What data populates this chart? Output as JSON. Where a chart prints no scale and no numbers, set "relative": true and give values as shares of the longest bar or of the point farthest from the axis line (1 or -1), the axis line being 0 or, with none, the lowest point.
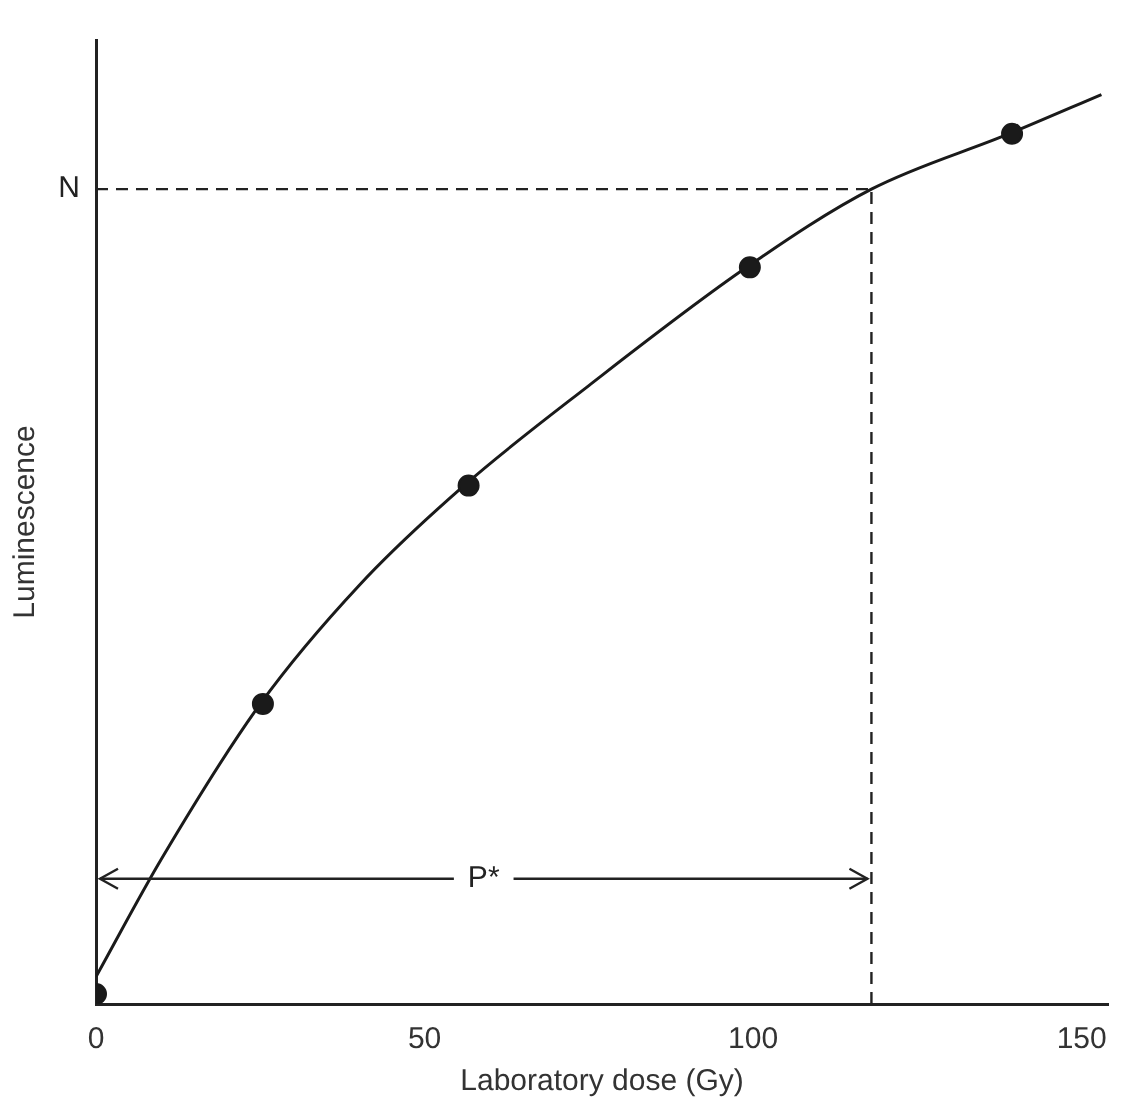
{
  "chart_data": {
    "type": "scatter",
    "xlabel": "Laboratory dose (Gy)",
    "ylabel": "Luminescence",
    "relative": true,
    "xlim": [
      0,
      154
    ],
    "xticks": [
      0,
      50,
      100,
      150
    ],
    "grid": false,
    "legend": false,
    "marker": "circle",
    "series": [
      {
        "color": "#1a1a1a",
        "x": [
          0,
          25.4,
          56.7,
          99.5,
          139.4
        ],
        "values": [
          0.011,
          0.33,
          0.57,
          0.81,
          0.957
        ]
      },
      {
        "type": "line",
        "color": "#1a1a1a",
        "marker": "none",
        "line_style": "solid",
        "x": [
          0,
          10,
          25,
          40,
          56,
          75,
          99,
          118,
          139,
          153
        ],
        "values": [
          0.03,
          0.16,
          0.33,
          0.46,
          0.57,
          0.68,
          0.81,
          0.896,
          0.957,
          1.0
        ]
      }
    ],
    "ref_lines": [
      {
        "axis": "y",
        "value": 0.896,
        "label": "N",
        "line_style": "dashed"
      },
      {
        "axis": "x",
        "value": 118,
        "label": null,
        "line_style": "dashed"
      }
    ],
    "annotations": [
      "P*"
    ]
  }
}
